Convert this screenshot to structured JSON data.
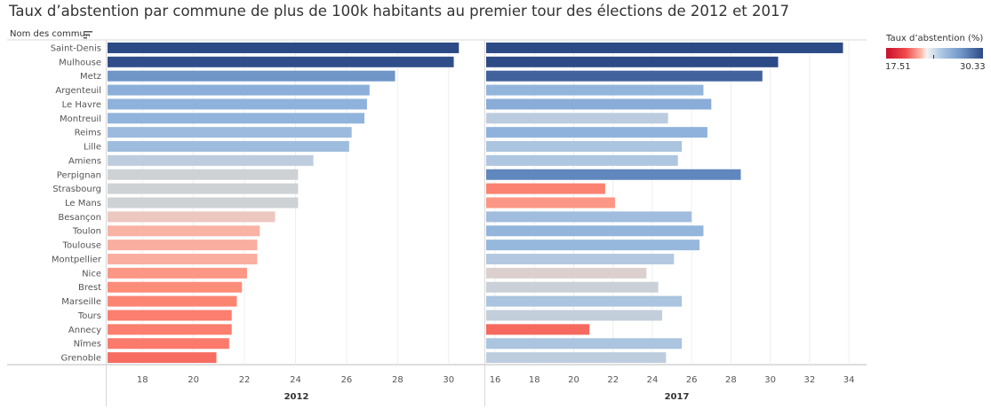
{
  "title": "Taux d’abstention par commune de plus de 100k habitants au premier tour des élections de 2012 et 2017",
  "row_header": "Nom des commu..",
  "legend": {
    "title": "Taux d’abstention (%)",
    "min": "17.51",
    "max": "30.33"
  },
  "chart_data": {
    "type": "bar",
    "orientation": "horizontal",
    "color_scale": {
      "min": 17.51,
      "max": 30.33,
      "colors": [
        "#c8102e",
        "#f3f3f3",
        "#2c4a86"
      ]
    },
    "categories": [
      "Saint-Denis",
      "Mulhouse",
      "Metz",
      "Argenteuil",
      "Le Havre",
      "Montreuil",
      "Reims",
      "Lille",
      "Amiens",
      "Perpignan",
      "Strasbourg",
      "Le Mans",
      "Besançon",
      "Toulon",
      "Toulouse",
      "Montpellier",
      "Nice",
      "Brest",
      "Marseille",
      "Tours",
      "Annecy",
      "Nîmes",
      "Grenoble"
    ],
    "series": [
      {
        "name": "2012",
        "xlim": [
          16.6,
          31.4
        ],
        "ticks": [
          "18",
          "20",
          "22",
          "24",
          "26",
          "28",
          "30"
        ],
        "values": [
          30.4,
          30.2,
          27.9,
          26.9,
          26.8,
          26.7,
          26.2,
          26.1,
          24.7,
          24.1,
          24.1,
          24.1,
          23.2,
          22.6,
          22.5,
          22.5,
          22.1,
          21.9,
          21.7,
          21.5,
          21.5,
          21.4,
          20.9
        ]
      },
      {
        "name": "2017",
        "xlim": [
          15.5,
          34.9
        ],
        "ticks": [
          "16",
          "18",
          "20",
          "22",
          "24",
          "26",
          "28",
          "30",
          "32",
          "34"
        ],
        "values": [
          33.7,
          30.4,
          29.6,
          26.6,
          27.0,
          24.8,
          26.8,
          25.5,
          25.3,
          28.5,
          21.6,
          22.1,
          26.0,
          26.6,
          26.4,
          25.1,
          23.7,
          24.3,
          25.5,
          24.5,
          20.8,
          25.5,
          24.7
        ]
      }
    ]
  }
}
